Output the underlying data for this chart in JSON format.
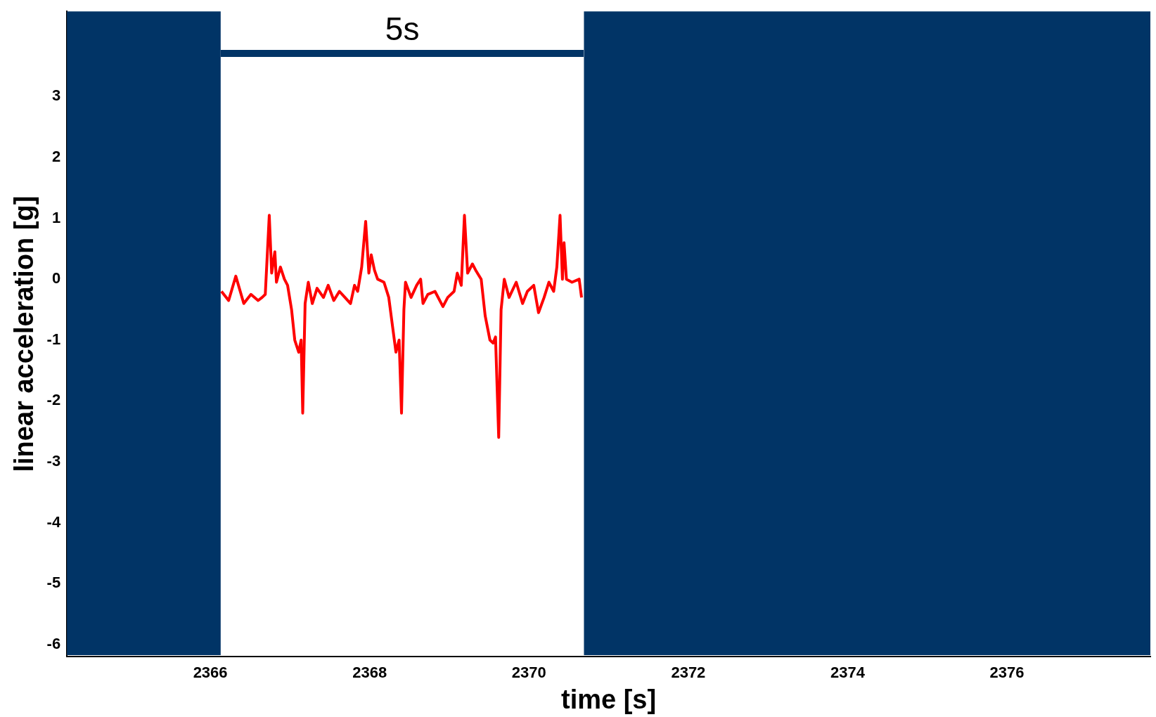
{
  "chart_data": {
    "type": "line",
    "xlabel": "time [s]",
    "ylabel": "linear acceleration [g]",
    "x": [
      2366.14,
      2366.23,
      2366.32,
      2366.42,
      2366.51,
      2366.6,
      2366.65,
      2366.69,
      2366.74,
      2366.77,
      2366.81,
      2366.83,
      2366.88,
      2366.93,
      2366.97,
      2367.02,
      2367.06,
      2367.11,
      2367.14,
      2367.16,
      2367.19,
      2367.23,
      2367.28,
      2367.34,
      2367.42,
      2367.48,
      2367.55,
      2367.62,
      2367.69,
      2367.76,
      2367.81,
      2367.85,
      2367.9,
      2367.95,
      2367.99,
      2368.02,
      2368.06,
      2368.1,
      2368.18,
      2368.24,
      2368.29,
      2368.33,
      2368.37,
      2368.4,
      2368.43,
      2368.45,
      2368.52,
      2368.59,
      2368.64,
      2368.67,
      2368.73,
      2368.82,
      2368.92,
      2368.98,
      2369.06,
      2369.1,
      2369.15,
      2369.19,
      2369.23,
      2369.29,
      2369.33,
      2369.4,
      2369.45,
      2369.51,
      2369.55,
      2369.58,
      2369.62,
      2369.65,
      2369.69,
      2369.75,
      2369.84,
      2369.92,
      2369.98,
      2370.06,
      2370.12,
      2370.19,
      2370.25,
      2370.31,
      2370.35,
      2370.39,
      2370.42,
      2370.44,
      2370.47,
      2370.54,
      2370.63,
      2370.66
    ],
    "values": [
      -0.2,
      -0.35,
      0.05,
      -0.4,
      -0.25,
      -0.35,
      -0.3,
      -0.25,
      1.05,
      0.1,
      0.45,
      -0.05,
      0.2,
      0.0,
      -0.1,
      -0.5,
      -1.0,
      -1.2,
      -1.0,
      -2.2,
      -0.4,
      -0.05,
      -0.4,
      -0.15,
      -0.3,
      -0.1,
      -0.35,
      -0.2,
      -0.3,
      -0.4,
      -0.1,
      -0.2,
      0.2,
      0.95,
      0.1,
      0.4,
      0.15,
      0.0,
      -0.05,
      -0.3,
      -0.8,
      -1.2,
      -1.0,
      -2.2,
      -0.5,
      -0.05,
      -0.3,
      -0.1,
      0.0,
      -0.4,
      -0.25,
      -0.2,
      -0.45,
      -0.3,
      -0.2,
      0.1,
      -0.1,
      1.05,
      0.1,
      0.25,
      0.15,
      0.0,
      -0.6,
      -1.0,
      -1.05,
      -0.95,
      -2.6,
      -0.5,
      0.0,
      -0.3,
      -0.05,
      -0.4,
      -0.2,
      -0.1,
      -0.55,
      -0.3,
      -0.05,
      -0.2,
      0.2,
      1.05,
      0.0,
      0.6,
      0.0,
      -0.05,
      0.0,
      -0.3
    ],
    "color": "#ff0000",
    "marker": "none",
    "line_style": "solid",
    "xlim": [
      2364.2,
      2377.8
    ],
    "xticks": [
      2366,
      2368,
      2370,
      2372,
      2374,
      2376
    ],
    "ylim": [
      -6.2,
      4.4
    ],
    "yticks": [
      -6,
      -5,
      -4,
      -3,
      -2,
      -1,
      0,
      1,
      2,
      3
    ],
    "bands": [
      {
        "axis": "x",
        "from": 2364.2,
        "to": 2366.13,
        "color": "#013466"
      },
      {
        "axis": "x",
        "from": 2370.69,
        "to": 2377.8,
        "color": "#013466"
      }
    ],
    "annotations": [
      "5s"
    ]
  }
}
